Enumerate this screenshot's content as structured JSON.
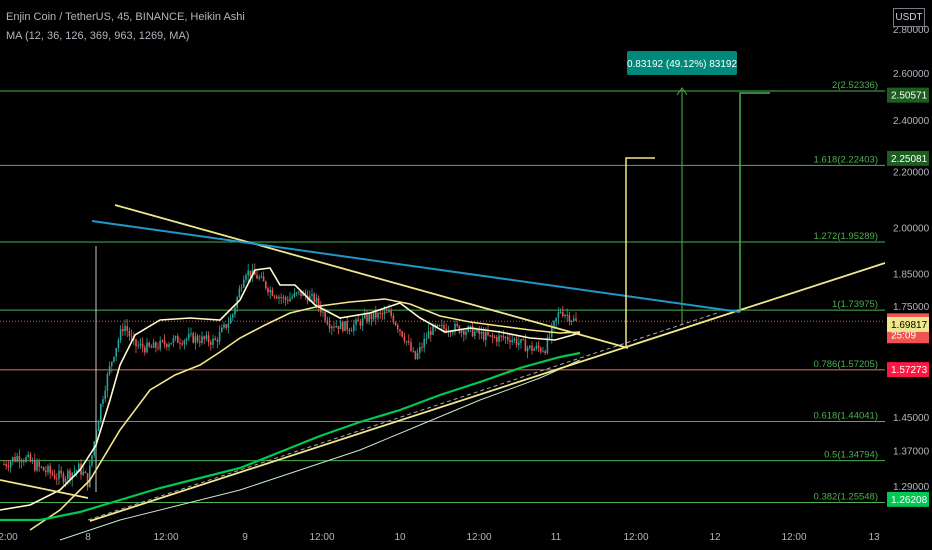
{
  "header": {
    "title": "Enjin Coin / TetherUS, 45, BINANCE, Heikin Ashi",
    "ma_label": "MA (12, 36, 126, 369, 963, 1269, MA)",
    "unit": "USDT"
  },
  "chart_data": {
    "type": "candlestick",
    "title": "Enjin Coin / TetherUS, 45, BINANCE, Heikin Ashi",
    "y_scale": "log",
    "ylim": [
      1.22,
      2.85
    ],
    "y_ticks": [
      {
        "value": 2.8,
        "label": "2.80000"
      },
      {
        "value": 2.6,
        "label": "2.60000"
      },
      {
        "value": 2.4,
        "label": "2.40000"
      },
      {
        "value": 2.2,
        "label": "2.20000"
      },
      {
        "value": 2.0,
        "label": "2.00000"
      },
      {
        "value": 1.85,
        "label": "1.85000"
      },
      {
        "value": 1.75,
        "label": "1.75000"
      },
      {
        "value": 1.45,
        "label": "1.45000"
      },
      {
        "value": 1.37,
        "label": "1.37000"
      },
      {
        "value": 1.29,
        "label": "1.29000"
      }
    ],
    "x_ticks": [
      "2:00",
      "8",
      "12:00",
      "9",
      "12:00",
      "10",
      "12:00",
      "11",
      "12:00",
      "12",
      "12:00",
      "13"
    ],
    "fib_levels": [
      {
        "value": 2.52336,
        "label": "2(2.52336)"
      },
      {
        "value": 2.22403,
        "label": "1.618(2.22403)"
      },
      {
        "value": 1.95289,
        "label": "1.272(1.95289)"
      },
      {
        "value": 1.73975,
        "label": "1(1.73975)"
      },
      {
        "value": 1.57205,
        "label": "0.786(1.57205)"
      },
      {
        "value": 1.44041,
        "label": "0.618(1.44041)"
      },
      {
        "value": 1.34794,
        "label": "0.5(1.34794)"
      },
      {
        "value": 1.25548,
        "label": "0.382(1.25548)"
      }
    ],
    "price_tags": [
      {
        "value": 2.50571,
        "label": "2.50571",
        "color": "#1b5e20",
        "text_color": "#ffffff"
      },
      {
        "value": 2.25081,
        "label": "2.25081",
        "color": "#1b5e20",
        "text_color": "#ffffff"
      },
      {
        "value": 1.70724,
        "label": "1.70724",
        "sub": "25:09",
        "color": "#ef5350",
        "text_color": "#ffffff"
      },
      {
        "value": 1.69817,
        "label": "1.69817",
        "color": "#f0e68c",
        "text_color": "#000000"
      },
      {
        "value": 1.57273,
        "label": "1.57273",
        "color": "#ff1744",
        "text_color": "#ffffff"
      },
      {
        "value": 1.26208,
        "label": "1.26208",
        "color": "#00c853",
        "text_color": "#ffffff"
      }
    ],
    "current_price": 1.70724,
    "horizontal_red_line": 1.57273,
    "measure_label": "0.83192 (49.12%) 83192",
    "colors": {
      "up": "#26a69a",
      "down": "#ef5350",
      "fib": "#4caf50",
      "trend_yellow": "#f0e68c",
      "trend_blue": "#2196c8",
      "ma_green": "#00c853",
      "ma_light": "#fffdd0",
      "ma_yellow": "#f5e68c"
    }
  }
}
